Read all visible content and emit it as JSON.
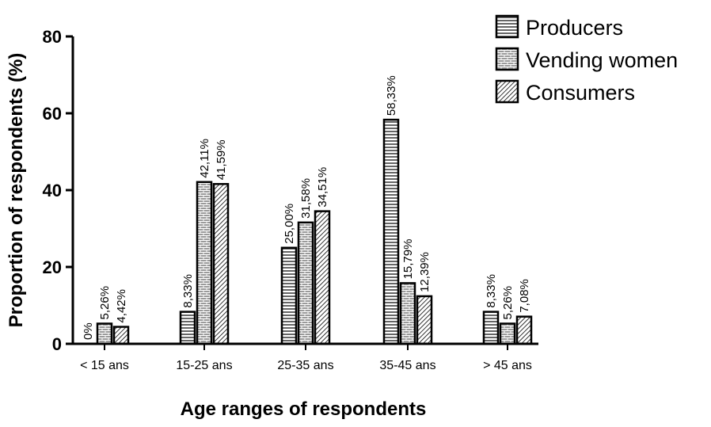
{
  "chart_data": {
    "type": "bar",
    "title": "",
    "xlabel": "Age ranges of respondents",
    "ylabel": "Proportion of respondents (%)",
    "ylim": [
      0,
      80
    ],
    "yticks": [
      "0",
      "20",
      "40",
      "60",
      "80"
    ],
    "categories": [
      "< 15 ans",
      "15-25 ans",
      "25-35 ans",
      "35-45 ans",
      "> 45 ans"
    ],
    "series": [
      {
        "name": "Producers",
        "pattern": "horizontal-lines",
        "values": [
          0,
          8.33,
          25.0,
          58.33,
          8.33
        ],
        "labels": [
          "0%",
          "8,33%",
          "25,00%",
          "58,33%",
          "8,33%"
        ]
      },
      {
        "name": "Vending women",
        "pattern": "brick",
        "values": [
          5.26,
          42.11,
          31.58,
          15.79,
          5.26
        ],
        "labels": [
          "5,26%",
          "42,11%",
          "31,58%",
          "15,79%",
          "5,26%"
        ]
      },
      {
        "name": "Consumers",
        "pattern": "diagonal-lines",
        "values": [
          4.42,
          41.59,
          34.51,
          12.39,
          7.08
        ],
        "labels": [
          "4,42%",
          "41,59%",
          "34,51%",
          "12,39%",
          "7,08%"
        ]
      }
    ],
    "legend_position": "top-right",
    "grid": false
  }
}
